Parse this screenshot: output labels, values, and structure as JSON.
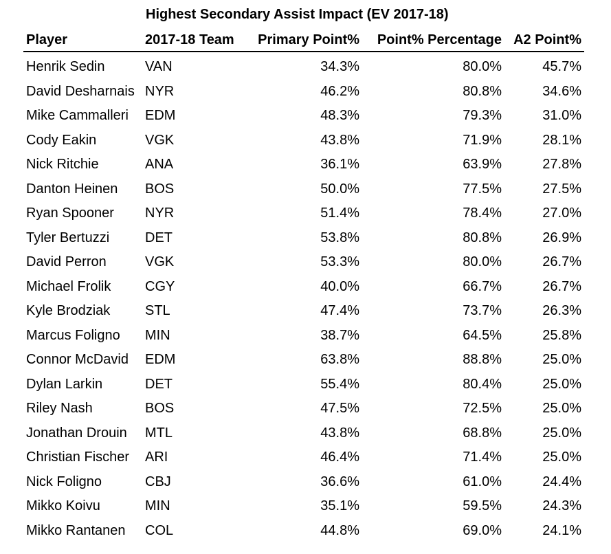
{
  "chart_data": {
    "type": "table",
    "title": "Highest Secondary Assist Impact (EV 2017-18)",
    "columns": [
      "Player",
      "2017-18 Team",
      "Primary Point%",
      "Point% Percentage",
      "A2 Point%"
    ],
    "rows": [
      [
        "Henrik Sedin",
        "VAN",
        "34.3%",
        "80.0%",
        "45.7%"
      ],
      [
        "David Desharnais",
        "NYR",
        "46.2%",
        "80.8%",
        "34.6%"
      ],
      [
        "Mike Cammalleri",
        "EDM",
        "48.3%",
        "79.3%",
        "31.0%"
      ],
      [
        "Cody Eakin",
        "VGK",
        "43.8%",
        "71.9%",
        "28.1%"
      ],
      [
        "Nick Ritchie",
        "ANA",
        "36.1%",
        "63.9%",
        "27.8%"
      ],
      [
        "Danton Heinen",
        "BOS",
        "50.0%",
        "77.5%",
        "27.5%"
      ],
      [
        "Ryan Spooner",
        "NYR",
        "51.4%",
        "78.4%",
        "27.0%"
      ],
      [
        "Tyler Bertuzzi",
        "DET",
        "53.8%",
        "80.8%",
        "26.9%"
      ],
      [
        "David Perron",
        "VGK",
        "53.3%",
        "80.0%",
        "26.7%"
      ],
      [
        "Michael Frolik",
        "CGY",
        "40.0%",
        "66.7%",
        "26.7%"
      ],
      [
        "Kyle Brodziak",
        "STL",
        "47.4%",
        "73.7%",
        "26.3%"
      ],
      [
        "Marcus Foligno",
        "MIN",
        "38.7%",
        "64.5%",
        "25.8%"
      ],
      [
        "Connor McDavid",
        "EDM",
        "63.8%",
        "88.8%",
        "25.0%"
      ],
      [
        "Dylan Larkin",
        "DET",
        "55.4%",
        "80.4%",
        "25.0%"
      ],
      [
        "Riley Nash",
        "BOS",
        "47.5%",
        "72.5%",
        "25.0%"
      ],
      [
        "Jonathan Drouin",
        "MTL",
        "43.8%",
        "68.8%",
        "25.0%"
      ],
      [
        "Christian Fischer",
        "ARI",
        "46.4%",
        "71.4%",
        "25.0%"
      ],
      [
        "Nick Foligno",
        "CBJ",
        "36.6%",
        "61.0%",
        "24.4%"
      ],
      [
        "Mikko Koivu",
        "MIN",
        "35.1%",
        "59.5%",
        "24.3%"
      ],
      [
        "Mikko Rantanen",
        "COL",
        "44.8%",
        "69.0%",
        "24.1%"
      ]
    ]
  }
}
